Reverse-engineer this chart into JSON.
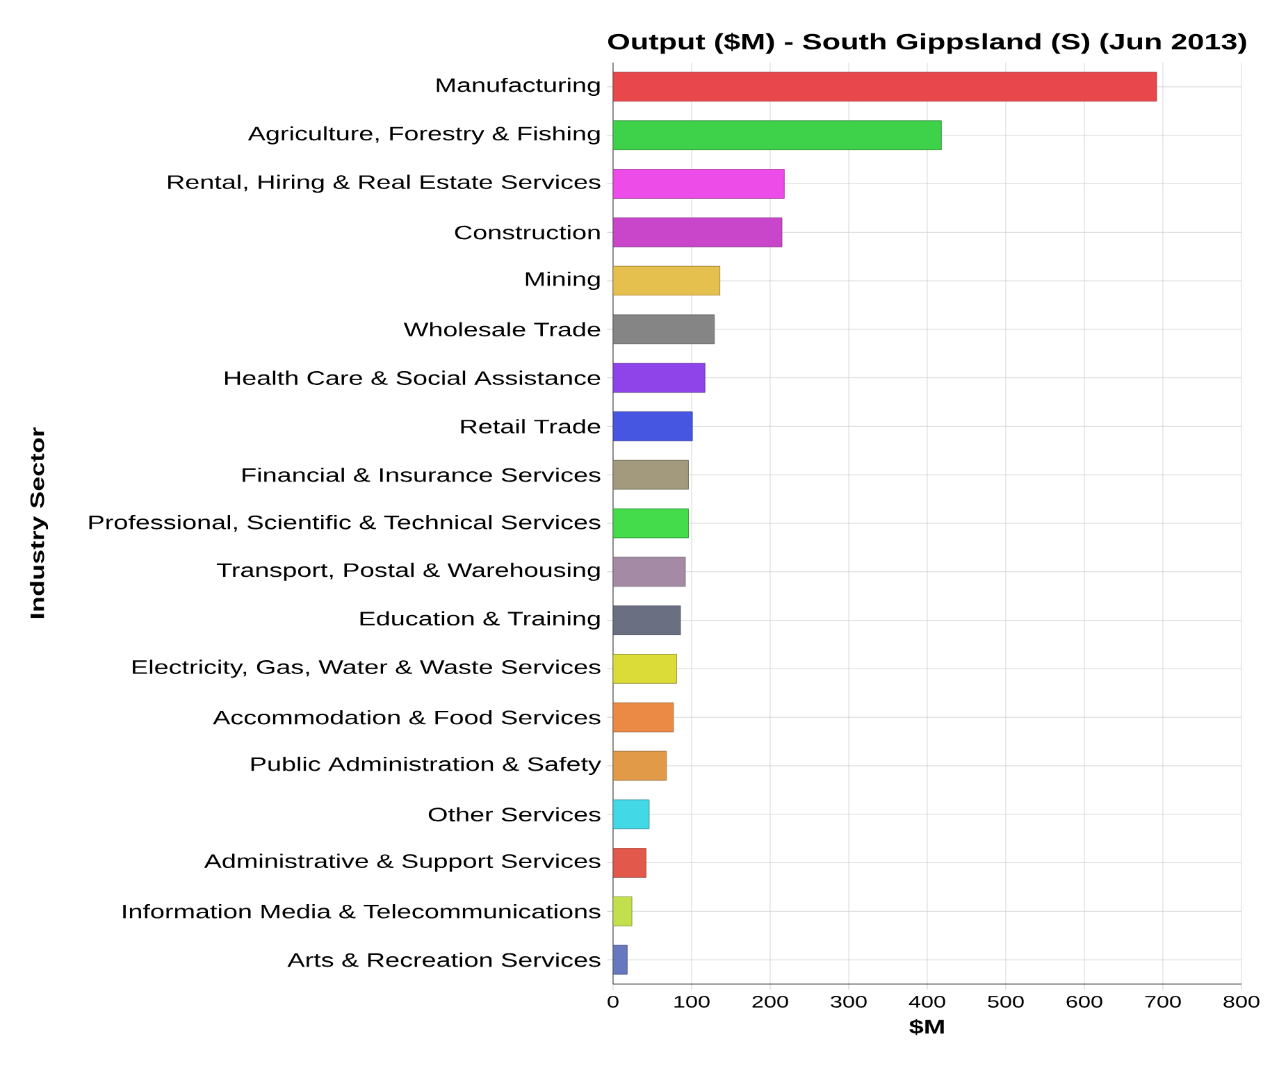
{
  "chart_data": {
    "type": "bar",
    "orientation": "horizontal",
    "title": "Output ($M) - South Gippsland (S) (Jun 2013)",
    "xlabel": "$M",
    "ylabel": "Industry Sector",
    "categories": [
      "Manufacturing",
      "Agriculture, Forestry & Fishing",
      "Rental, Hiring & Real Estate Services",
      "Construction",
      "Mining",
      "Wholesale Trade",
      "Health Care & Social Assistance",
      "Retail Trade",
      "Financial & Insurance Services",
      "Professional, Scientific & Technical Services",
      "Transport, Postal & Warehousing",
      "Education & Training",
      "Electricity, Gas, Water & Waste Services",
      "Accommodation & Food Services",
      "Public Administration & Safety",
      "Other Services",
      "Administrative & Support Services",
      "Information Media & Telecommunications",
      "Arts & Recreation Services"
    ],
    "values": [
      692,
      418,
      218,
      215,
      136,
      129,
      117,
      101,
      96,
      96,
      92,
      86,
      81,
      77,
      68,
      46,
      42,
      24,
      18
    ],
    "colors": [
      "#e8474b",
      "#3ed24a",
      "#ee4ce8",
      "#c945c9",
      "#e6c04e",
      "#858585",
      "#8f44ea",
      "#4656e0",
      "#a39a7d",
      "#45dc4c",
      "#a58aa6",
      "#6a7082",
      "#dcdc38",
      "#ea8a44",
      "#e09a48",
      "#42d8e6",
      "#e2584a",
      "#c2e04e",
      "#6878c0"
    ],
    "xlim": [
      0,
      800
    ],
    "xticks": [
      0,
      100,
      200,
      300,
      400,
      500,
      600,
      700,
      800
    ],
    "grid": true
  }
}
